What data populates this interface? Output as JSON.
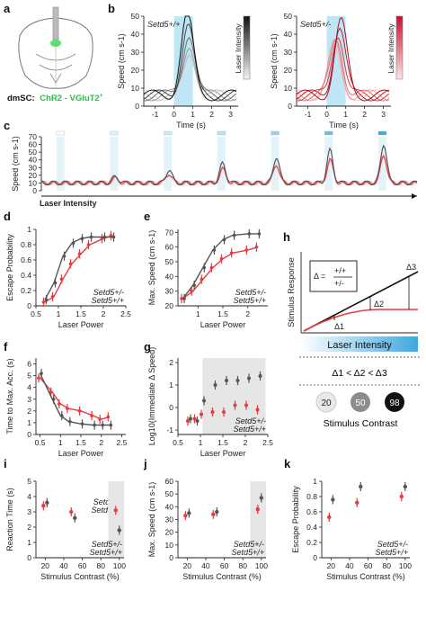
{
  "figure": {
    "a": {
      "region_label": "dmSC:",
      "construct": "ChR2 - VGluT2",
      "construct_sup": "+",
      "highlight_color": "#3ddc5a"
    },
    "b": {
      "wt_label": "Setd5+/+",
      "het_label": "Setd5+/-",
      "colorbar_label": "Laser Intensity",
      "xlabel": "Time (s)",
      "ylabel": "Speed (cm s-1)",
      "xticks": [
        "-1",
        "0",
        "1",
        "2",
        "3"
      ],
      "yticks": [
        "0",
        "10",
        "20",
        "30",
        "40",
        "50"
      ]
    },
    "c": {
      "ylabel": "Speed (cm s-1)",
      "xlabel": "Laser Intensity",
      "yticks": [
        "0",
        "10",
        "20",
        "30",
        "40",
        "50",
        "60",
        "70"
      ]
    },
    "h": {
      "ylabel": "Stimulus Response",
      "xlabel": "Laser Intensity",
      "delta_eq": "Δ =",
      "ratio_top": "+/+",
      "ratio_bottom": "+/-",
      "d1": "Δ1",
      "d2": "Δ2",
      "d3": "Δ3",
      "ineq": "Δ1 < Δ2 < Δ3",
      "contrast_values": [
        "20",
        "50",
        "98"
      ],
      "contrast_label": "Stimulus Contrast"
    },
    "legend": {
      "het": "Setd5+/-",
      "wt": "Setd5+/+"
    },
    "colors": {
      "wt": "#555555",
      "het": "#e8393e",
      "stim": "#bfe6f5",
      "laser": "#4aa9df"
    }
  },
  "chart_data": [
    {
      "panel": "d",
      "type": "line",
      "xlabel": "Laser Power",
      "ylabel": "Escape Probability",
      "x": [
        0.7,
        0.9,
        1.1,
        1.3,
        1.5,
        1.7,
        2.0,
        2.2
      ],
      "series": [
        {
          "name": "Setd5+/-",
          "values": [
            0.05,
            0.12,
            0.35,
            0.55,
            0.68,
            0.8,
            0.88,
            0.92
          ]
        },
        {
          "name": "Setd5+/+",
          "values": [
            0.08,
            0.3,
            0.65,
            0.82,
            0.88,
            0.9,
            0.9,
            0.9
          ]
        }
      ],
      "xticks": [
        "0.5",
        "1",
        "1.5",
        "2",
        "2.5"
      ],
      "yticks": [
        "0",
        "0.2",
        "0.4",
        "0.6",
        "0.8",
        "1"
      ],
      "xlim": [
        0.5,
        2.5
      ],
      "ylim": [
        0,
        1
      ]
    },
    {
      "panel": "e",
      "type": "line",
      "xlabel": "Laser Power",
      "ylabel": "Max. Speed (cm s-1)",
      "x": [
        0.7,
        0.9,
        1.1,
        1.3,
        1.5,
        1.7,
        2.0,
        2.2
      ],
      "series": [
        {
          "name": "Setd5+/-",
          "values": [
            25,
            30,
            38,
            46,
            52,
            56,
            58,
            60
          ]
        },
        {
          "name": "Setd5+/+",
          "values": [
            25,
            34,
            46,
            58,
            65,
            68,
            69,
            69
          ]
        }
      ],
      "xticks": [
        "1",
        "1.5",
        "2"
      ],
      "yticks": [
        "20",
        "30",
        "40",
        "50",
        "60",
        "70"
      ],
      "xlim": [
        0.6,
        2.4
      ],
      "ylim": [
        20,
        72
      ]
    },
    {
      "panel": "f",
      "type": "line",
      "xlabel": "Laser Power",
      "ylabel": "Time to Max. Acc. (s)",
      "x": [
        0.5,
        0.8,
        1.0,
        1.2,
        1.5,
        1.8,
        2.0,
        2.2
      ],
      "series": [
        {
          "name": "Setd5+/-",
          "values": [
            4.8,
            3.6,
            2.6,
            2.2,
            2.0,
            1.6,
            1.3,
            1.5
          ]
        },
        {
          "name": "Setd5+/+",
          "values": [
            5.2,
            3.0,
            1.6,
            1.1,
            0.9,
            0.8,
            0.8,
            0.8
          ]
        }
      ],
      "xticks": [
        "0.5",
        "1",
        "1.5",
        "2",
        "2.5"
      ],
      "yticks": [
        "0",
        "1",
        "2",
        "3",
        "4",
        "5",
        "6"
      ],
      "xlim": [
        0.4,
        2.6
      ],
      "ylim": [
        0,
        6.5
      ]
    },
    {
      "panel": "g",
      "type": "scatter",
      "xlabel": "Laser Power",
      "ylabel": "Log10(Immediate Δ Speed)",
      "x": [
        0.75,
        0.9,
        1.05,
        1.3,
        1.55,
        1.8,
        2.05,
        2.3
      ],
      "series": [
        {
          "name": "Setd5+/-",
          "values": [
            -0.6,
            -0.5,
            -0.3,
            -0.2,
            -0.2,
            0.1,
            0.1,
            -0.1
          ]
        },
        {
          "name": "Setd5+/+",
          "values": [
            -0.5,
            -0.6,
            0.3,
            1.0,
            1.2,
            1.2,
            1.3,
            1.4
          ]
        }
      ],
      "xticks": [
        "0.5",
        "1",
        "1.5",
        "2",
        "2.5"
      ],
      "yticks": [
        "-1",
        "0",
        "1",
        "2"
      ],
      "xlim": [
        0.5,
        2.5
      ],
      "ylim": [
        -1.2,
        2.2
      ]
    },
    {
      "panel": "i",
      "type": "scatter",
      "xlabel": "Stimulus Contrast (%)",
      "ylabel": "Reaction Time (s)",
      "x": [
        20,
        50,
        98
      ],
      "series": [
        {
          "name": "Setd5+/-",
          "values": [
            3.4,
            3.0,
            3.1
          ]
        },
        {
          "name": "Setd5+/+",
          "values": [
            3.6,
            2.6,
            1.8
          ]
        }
      ],
      "xticks": [
        "20",
        "40",
        "60",
        "80",
        "100"
      ],
      "yticks": [
        "0",
        "1",
        "2",
        "3",
        "4",
        "5"
      ],
      "xlim": [
        10,
        105
      ],
      "ylim": [
        0,
        5
      ]
    },
    {
      "panel": "j",
      "type": "scatter",
      "xlabel": "Stimulus Contrast (%)",
      "ylabel": "Max. Speed (cm s-1)",
      "x": [
        20,
        50,
        98
      ],
      "series": [
        {
          "name": "Setd5+/-",
          "values": [
            33,
            34,
            38
          ]
        },
        {
          "name": "Setd5+/+",
          "values": [
            35,
            36,
            47
          ]
        }
      ],
      "xticks": [
        "20",
        "40",
        "60",
        "80",
        "100"
      ],
      "yticks": [
        "0",
        "10",
        "20",
        "30",
        "40",
        "50",
        "60"
      ],
      "xlim": [
        10,
        105
      ],
      "ylim": [
        0,
        60
      ]
    },
    {
      "panel": "k",
      "type": "scatter",
      "xlabel": "Stimulus Contrast (%)",
      "ylabel": "Escape Probability",
      "x": [
        20,
        50,
        98
      ],
      "series": [
        {
          "name": "Setd5+/-",
          "values": [
            0.53,
            0.72,
            0.8
          ]
        },
        {
          "name": "Setd5+/+",
          "values": [
            0.76,
            0.93,
            0.93
          ]
        }
      ],
      "xticks": [
        "20",
        "40",
        "60",
        "80",
        "100"
      ],
      "yticks": [
        "0",
        "0.2",
        "0.4",
        "0.6",
        "0.8",
        "1"
      ],
      "xlim": [
        10,
        105
      ],
      "ylim": [
        0,
        1
      ]
    }
  ]
}
